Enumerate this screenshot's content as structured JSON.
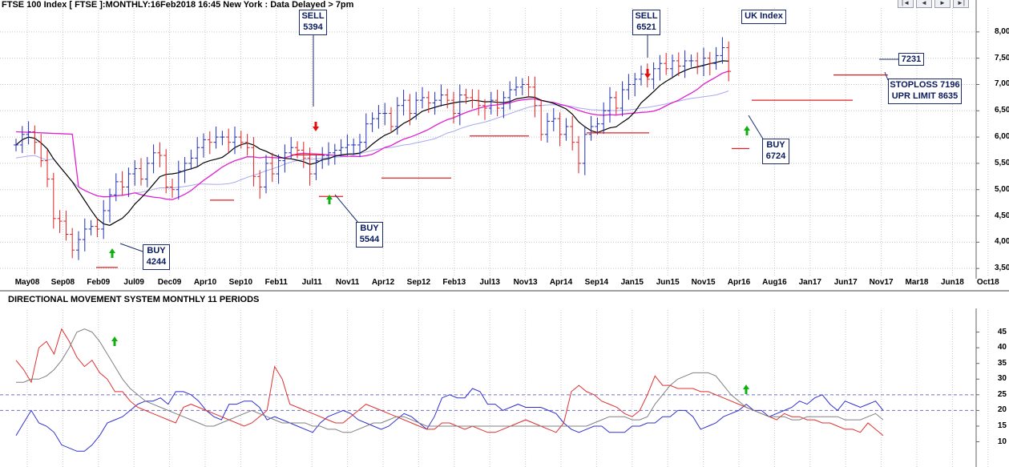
{
  "header": {
    "title": "FTSE 100 Index [ FTSE ]:MONTHLY:16Feb2018 16:45 New York : Data Delayed > 7pm",
    "nav_buttons": [
      "|◄",
      "◄",
      "►",
      "►|"
    ]
  },
  "indicator": {
    "title": "DIRECTIONAL MOVEMENT SYSTEM MONTHLY 11 PERIODS"
  },
  "annotations": {
    "sell1": {
      "line1": "SELL",
      "line2": "5394"
    },
    "sell2": {
      "line1": "SELL",
      "line2": "6521"
    },
    "uk": "UK Index",
    "buy1": {
      "line1": "BUY",
      "line2": "4244"
    },
    "buy2": {
      "line1": "BUY",
      "line2": "5544"
    },
    "buy3": {
      "line1": "BUY",
      "line2": "6724"
    },
    "last": "7231",
    "stop": {
      "line1": "STOPLOSS 7196",
      "line2": "UPR LIMIT 8635"
    }
  },
  "colors": {
    "up_bar": "#1f2db8",
    "down_bar": "#e02020",
    "ma_fast": "#000000",
    "ma_slow": "#e020d0",
    "ma_long": "#a8a8f0",
    "plus_di": "#3030d0",
    "minus_di": "#e03030",
    "adx": "#808080",
    "grid": "#c8c8c8",
    "dash": "#7070c0",
    "buy_arrow": "#10b010",
    "sell_arrow": "#e01010"
  },
  "chart_data": [
    {
      "type": "ohlc",
      "title": "FTSE 100 Index [ FTSE ]:MONTHLY:16Feb2018 16:45 New York : Data Delayed > 7pm",
      "yaxis_ticks": [
        "8,000",
        "7,500",
        "7,000",
        "6,500",
        "6,000",
        "5,500",
        "5,000",
        "4,500",
        "4,000",
        "3,500"
      ],
      "yaxis_values": [
        8000,
        7500,
        7000,
        6500,
        6000,
        5500,
        5000,
        4500,
        4000,
        3500
      ],
      "ylim": [
        3350,
        8150
      ],
      "xaxis_ticks": [
        "May08",
        "Sep08",
        "Feb09",
        "Jul09",
        "Dec09",
        "Apr10",
        "Sep10",
        "Feb11",
        "Jul11",
        "Nov11",
        "Apr12",
        "Sep12",
        "Feb13",
        "Jul13",
        "Nov13",
        "Apr14",
        "Sep14",
        "Jan15",
        "Jun15",
        "Nov15",
        "Apr16",
        "Aug16",
        "Jan17",
        "Jun17",
        "Nov17",
        "Mar18",
        "Jun18",
        "Oct18"
      ],
      "closes": [
        5850,
        6050,
        6100,
        5900,
        5550,
        5200,
        4450,
        4400,
        4150,
        3850,
        4050,
        4250,
        4300,
        4250,
        4600,
        4900,
        5150,
        5050,
        5300,
        5400,
        5200,
        5500,
        5700,
        5650,
        5050,
        5000,
        5350,
        5500,
        5600,
        5800,
        5950,
        5900,
        6000,
        6000,
        5900,
        6000,
        5900,
        5800,
        5250,
        5050,
        5500,
        5300,
        5550,
        5700,
        5800,
        5750,
        5600,
        5300,
        5550,
        5650,
        5700,
        5750,
        5800,
        5850,
        5850,
        5900,
        6250,
        6350,
        6450,
        6450,
        6200,
        6600,
        6700,
        6450,
        6700,
        6750,
        6650,
        6700,
        6800,
        6700,
        6450,
        6800,
        6750,
        6700,
        6600,
        6550,
        6700,
        6550,
        6750,
        6900,
        6950,
        7000,
        6950,
        6600,
        6050,
        6300,
        6350,
        6050,
        6200,
        5900,
        5500,
        6050,
        6200,
        6250,
        6500,
        6750,
        6550,
        6900,
        7000,
        7100,
        7200,
        7100,
        7300,
        7400,
        7300,
        7450,
        7350,
        7450,
        7450,
        7350,
        7500,
        7400,
        7550,
        7700,
        7250
      ],
      "moving_averages": [
        {
          "name": "fast",
          "color": "#000000"
        },
        {
          "name": "slow",
          "color": "#e020d0"
        },
        {
          "name": "long",
          "color": "#a8a8f0"
        }
      ],
      "signals": [
        {
          "type": "sell",
          "value": 5394
        },
        {
          "type": "buy",
          "value": 4244
        },
        {
          "type": "buy",
          "value": 5544
        },
        {
          "type": "sell",
          "value": 6521
        },
        {
          "type": "buy",
          "value": 6724
        }
      ],
      "last": 7231,
      "stoploss": 7196,
      "upper_limit": 8635
    },
    {
      "type": "line",
      "title": "DIRECTIONAL MOVEMENT SYSTEM MONTHLY 11 PERIODS",
      "yaxis_ticks": [
        "45",
        "40",
        "35",
        "30",
        "25",
        "20",
        "15",
        "10"
      ],
      "yaxis_values": [
        45,
        40,
        35,
        30,
        25,
        20,
        15,
        10
      ],
      "ylim": [
        4,
        50
      ],
      "reference_lines": [
        25,
        20
      ],
      "series": [
        {
          "color": "#3030d0",
          "values": [
            12,
            16,
            20,
            16,
            15,
            13,
            9,
            8,
            7,
            7,
            9,
            12,
            16,
            17,
            18,
            20,
            22,
            23,
            23,
            24,
            22,
            26,
            26,
            25,
            23,
            20,
            18,
            17,
            22,
            22,
            23,
            23,
            21,
            17,
            18,
            17,
            16,
            15,
            14,
            13,
            16,
            18,
            19,
            20,
            19,
            17,
            16,
            15,
            14,
            15,
            17,
            19,
            18,
            16,
            14,
            18,
            24,
            25,
            24,
            24,
            27,
            26,
            22,
            22,
            20,
            21,
            22,
            21,
            21,
            21,
            20,
            19,
            16,
            14,
            13,
            14,
            15,
            15,
            13,
            13,
            13,
            15,
            15,
            16,
            16,
            18,
            18,
            20,
            20,
            18,
            14,
            15,
            16,
            18,
            19,
            20,
            22,
            20,
            20,
            18,
            19,
            20,
            21,
            23,
            22,
            24,
            25,
            22,
            20,
            23,
            22,
            21,
            22,
            23,
            20
          ]
        },
        {
          "color": "#e03030",
          "values": [
            36,
            33,
            29,
            40,
            42,
            38,
            46,
            42,
            37,
            34,
            36,
            32,
            30,
            26,
            26,
            23,
            21,
            20,
            19,
            18,
            17,
            16,
            21,
            22,
            21,
            20,
            19,
            18,
            17,
            16,
            15,
            16,
            18,
            20,
            34,
            30,
            22,
            21,
            20,
            19,
            18,
            17,
            16,
            16,
            18,
            20,
            22,
            21,
            20,
            19,
            18,
            17,
            16,
            15,
            14,
            14,
            16,
            16,
            15,
            14,
            15,
            14,
            13,
            13,
            14,
            15,
            16,
            17,
            16,
            15,
            14,
            13,
            16,
            26,
            28,
            26,
            25,
            23,
            22,
            21,
            19,
            18,
            20,
            25,
            31,
            28,
            28,
            27,
            27,
            27,
            26,
            26,
            25,
            24,
            23,
            22,
            21,
            20,
            19,
            18,
            17,
            19,
            18,
            18,
            17,
            17,
            16,
            16,
            15,
            14,
            14,
            13,
            16,
            14,
            12
          ]
        },
        {
          "color": "#808080",
          "values": [
            29,
            29,
            30,
            30,
            31,
            33,
            36,
            40,
            45,
            46,
            45,
            42,
            38,
            34,
            30,
            27,
            25,
            23,
            22,
            21,
            20,
            19,
            18,
            17,
            16,
            15,
            15,
            16,
            17,
            18,
            19,
            20,
            19,
            18,
            17,
            16,
            16,
            16,
            16,
            15,
            15,
            14,
            14,
            13,
            13,
            14,
            15,
            16,
            16,
            17,
            18,
            18,
            17,
            16,
            15,
            15,
            15,
            15,
            15,
            15,
            15,
            15,
            15,
            15,
            15,
            15,
            15,
            15,
            15,
            15,
            15,
            15,
            15,
            15,
            15,
            15,
            16,
            17,
            18,
            18,
            18,
            17,
            17,
            18,
            22,
            25,
            28,
            30,
            31,
            32,
            32,
            32,
            31,
            28,
            25,
            23,
            21,
            20,
            19,
            18,
            18,
            18,
            17,
            17,
            18,
            18,
            18,
            18,
            18,
            17,
            17,
            17,
            18,
            19,
            17
          ]
        }
      ]
    }
  ]
}
